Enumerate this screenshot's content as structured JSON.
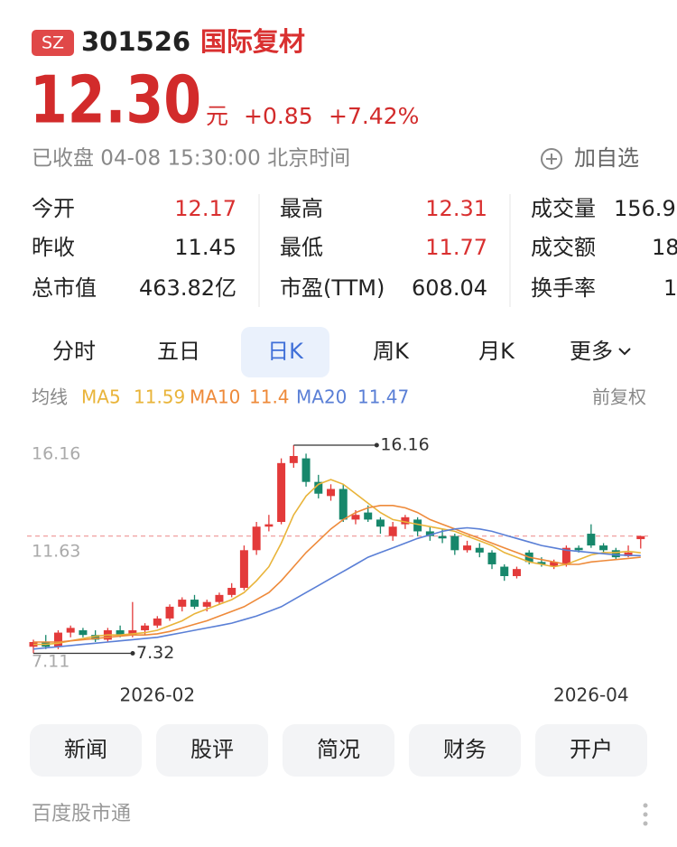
{
  "header": {
    "badge": "SZ",
    "code": "301526",
    "name": "国际复材",
    "price": "12.30",
    "unit": "元",
    "change": "+0.85",
    "change_pct": "+7.42%",
    "status": "已收盘 04-08 15:30:00 北京时间",
    "watch": "加自选"
  },
  "stats": [
    [
      {
        "label": "今开",
        "value": "12.17"
      },
      {
        "label": "最高",
        "value": "12.31"
      },
      {
        "label": "成交量",
        "value": "156.9"
      }
    ],
    [
      {
        "label": "昨收",
        "value": "11.45"
      },
      {
        "label": "最低",
        "value": "11.77"
      },
      {
        "label": "成交额",
        "value": "18"
      }
    ],
    [
      {
        "label": "总市值",
        "value": "463.82亿"
      },
      {
        "label": "市盈(TTM)",
        "value": "608.04"
      },
      {
        "label": "换手率",
        "value": "1"
      }
    ]
  ],
  "tabs": [
    "分时",
    "五日",
    "日K",
    "周K",
    "月K",
    "更多"
  ],
  "ma_legend": {
    "title": "均线",
    "adjust": "前复权"
  },
  "chart_data": {
    "type": "candlestick",
    "categories": [
      null,
      null,
      null,
      null,
      null,
      null,
      null,
      null,
      null,
      null,
      "2026-02",
      null,
      null,
      null,
      null,
      null,
      null,
      null,
      null,
      null,
      null,
      null,
      null,
      null,
      null,
      null,
      null,
      null,
      null,
      null,
      null,
      null,
      null,
      null,
      null,
      null,
      null,
      null,
      null,
      null,
      null,
      null,
      null,
      null,
      null,
      "2026-04",
      null,
      null,
      null,
      null
    ],
    "open": [
      7.6,
      7.8,
      7.6,
      8.2,
      8.3,
      8.1,
      7.9,
      8.3,
      8.1,
      8.3,
      8.5,
      8.8,
      9.3,
      9.6,
      9.3,
      9.5,
      9.8,
      10.1,
      11.7,
      12.7,
      12.9,
      15.4,
      15.6,
      14.6,
      14.0,
      14.3,
      13.0,
      13.3,
      13.0,
      12.3,
      12.8,
      13.0,
      12.5,
      12.3,
      12.3,
      11.7,
      11.8,
      11.6,
      11.0,
      10.6,
      11.6,
      11.2,
      11.0,
      11.1,
      11.8,
      12.4,
      11.9,
      11.7,
      11.45,
      12.17
    ],
    "high": [
      7.9,
      8.1,
      8.3,
      8.5,
      8.4,
      8.3,
      8.4,
      8.5,
      9.5,
      8.6,
      8.9,
      9.4,
      9.7,
      9.8,
      9.6,
      9.9,
      10.3,
      11.9,
      12.9,
      13.2,
      15.6,
      16.16,
      15.8,
      14.9,
      14.5,
      14.5,
      13.4,
      13.6,
      13.1,
      12.9,
      13.2,
      13.1,
      12.7,
      12.6,
      12.4,
      12.1,
      12.0,
      11.7,
      11.1,
      11.0,
      11.7,
      11.4,
      11.3,
      11.9,
      11.9,
      12.8,
      12.0,
      11.8,
      11.9,
      12.31
    ],
    "low": [
      7.32,
      7.5,
      7.5,
      8.0,
      8.0,
      7.8,
      7.8,
      8.0,
      8.0,
      8.1,
      8.4,
      8.7,
      9.1,
      9.2,
      9.1,
      9.4,
      9.7,
      10.0,
      11.5,
      12.5,
      12.8,
      15.2,
      14.4,
      13.9,
      13.8,
      12.9,
      12.8,
      12.9,
      12.4,
      12.1,
      12.6,
      12.3,
      12.1,
      12.0,
      11.5,
      11.6,
      11.4,
      10.9,
      10.4,
      10.5,
      11.1,
      11.0,
      10.9,
      11.0,
      11.6,
      11.8,
      11.6,
      11.3,
      11.4,
      11.77
    ],
    "close": [
      7.8,
      7.6,
      8.2,
      8.4,
      8.1,
      7.9,
      8.3,
      8.1,
      8.3,
      8.5,
      8.8,
      9.3,
      9.6,
      9.3,
      9.5,
      9.8,
      10.1,
      11.7,
      12.7,
      12.8,
      15.4,
      15.7,
      14.6,
      14.1,
      14.3,
      13.0,
      13.2,
      13.0,
      12.7,
      12.7,
      13.1,
      12.5,
      12.3,
      12.2,
      11.7,
      11.9,
      11.6,
      11.1,
      10.6,
      10.9,
      11.2,
      11.1,
      11.2,
      11.8,
      11.7,
      11.9,
      11.7,
      11.4,
      11.6,
      12.3
    ],
    "up_color": "#e33a3a",
    "down_color": "#17876b",
    "ma": [
      {
        "name": "MA5",
        "last": 11.59,
        "color": "#e9b43a",
        "values": [
          7.7,
          7.7,
          7.75,
          7.85,
          7.95,
          8.05,
          8.1,
          8.1,
          8.15,
          8.2,
          8.3,
          8.5,
          8.7,
          9.0,
          9.2,
          9.4,
          9.6,
          9.9,
          10.4,
          11.0,
          12.0,
          13.2,
          14.0,
          14.5,
          14.7,
          14.5,
          14.1,
          13.7,
          13.3,
          13.0,
          12.9,
          12.8,
          12.7,
          12.6,
          12.5,
          12.3,
          12.1,
          11.9,
          11.6,
          11.4,
          11.2,
          11.1,
          11.0,
          11.1,
          11.3,
          11.5,
          11.6,
          11.6,
          11.65,
          11.59
        ]
      },
      {
        "name": "MA10",
        "last": 11.4,
        "color": "#ee8a3a",
        "values": [
          7.8,
          7.8,
          7.8,
          7.85,
          7.9,
          7.95,
          8.0,
          8.05,
          8.1,
          8.1,
          8.15,
          8.25,
          8.4,
          8.55,
          8.7,
          8.9,
          9.1,
          9.3,
          9.6,
          9.9,
          10.4,
          11.0,
          11.6,
          12.1,
          12.6,
          13.0,
          13.3,
          13.5,
          13.6,
          13.6,
          13.5,
          13.3,
          13.0,
          12.8,
          12.6,
          12.4,
          12.2,
          12.0,
          11.8,
          11.6,
          11.4,
          11.3,
          11.2,
          11.1,
          11.1,
          11.2,
          11.25,
          11.3,
          11.35,
          11.4
        ]
      },
      {
        "name": "MA20",
        "last": 11.47,
        "color": "#5a7fd6",
        "values": [
          7.5,
          7.55,
          7.6,
          7.65,
          7.7,
          7.75,
          7.8,
          7.85,
          7.9,
          7.95,
          8.0,
          8.1,
          8.2,
          8.3,
          8.4,
          8.5,
          8.6,
          8.75,
          8.9,
          9.1,
          9.3,
          9.6,
          9.9,
          10.2,
          10.5,
          10.8,
          11.1,
          11.4,
          11.6,
          11.8,
          12.0,
          12.2,
          12.35,
          12.5,
          12.6,
          12.65,
          12.6,
          12.5,
          12.35,
          12.2,
          12.05,
          11.9,
          11.8,
          11.7,
          11.65,
          11.6,
          11.55,
          11.5,
          11.48,
          11.47
        ]
      }
    ],
    "ylim": [
      7.11,
      16.16
    ],
    "yticks": [
      16.16,
      11.63,
      7.11
    ]
  },
  "buttons": [
    "新闻",
    "股评",
    "简况",
    "财务",
    "开户"
  ],
  "footer": "百度股市通"
}
